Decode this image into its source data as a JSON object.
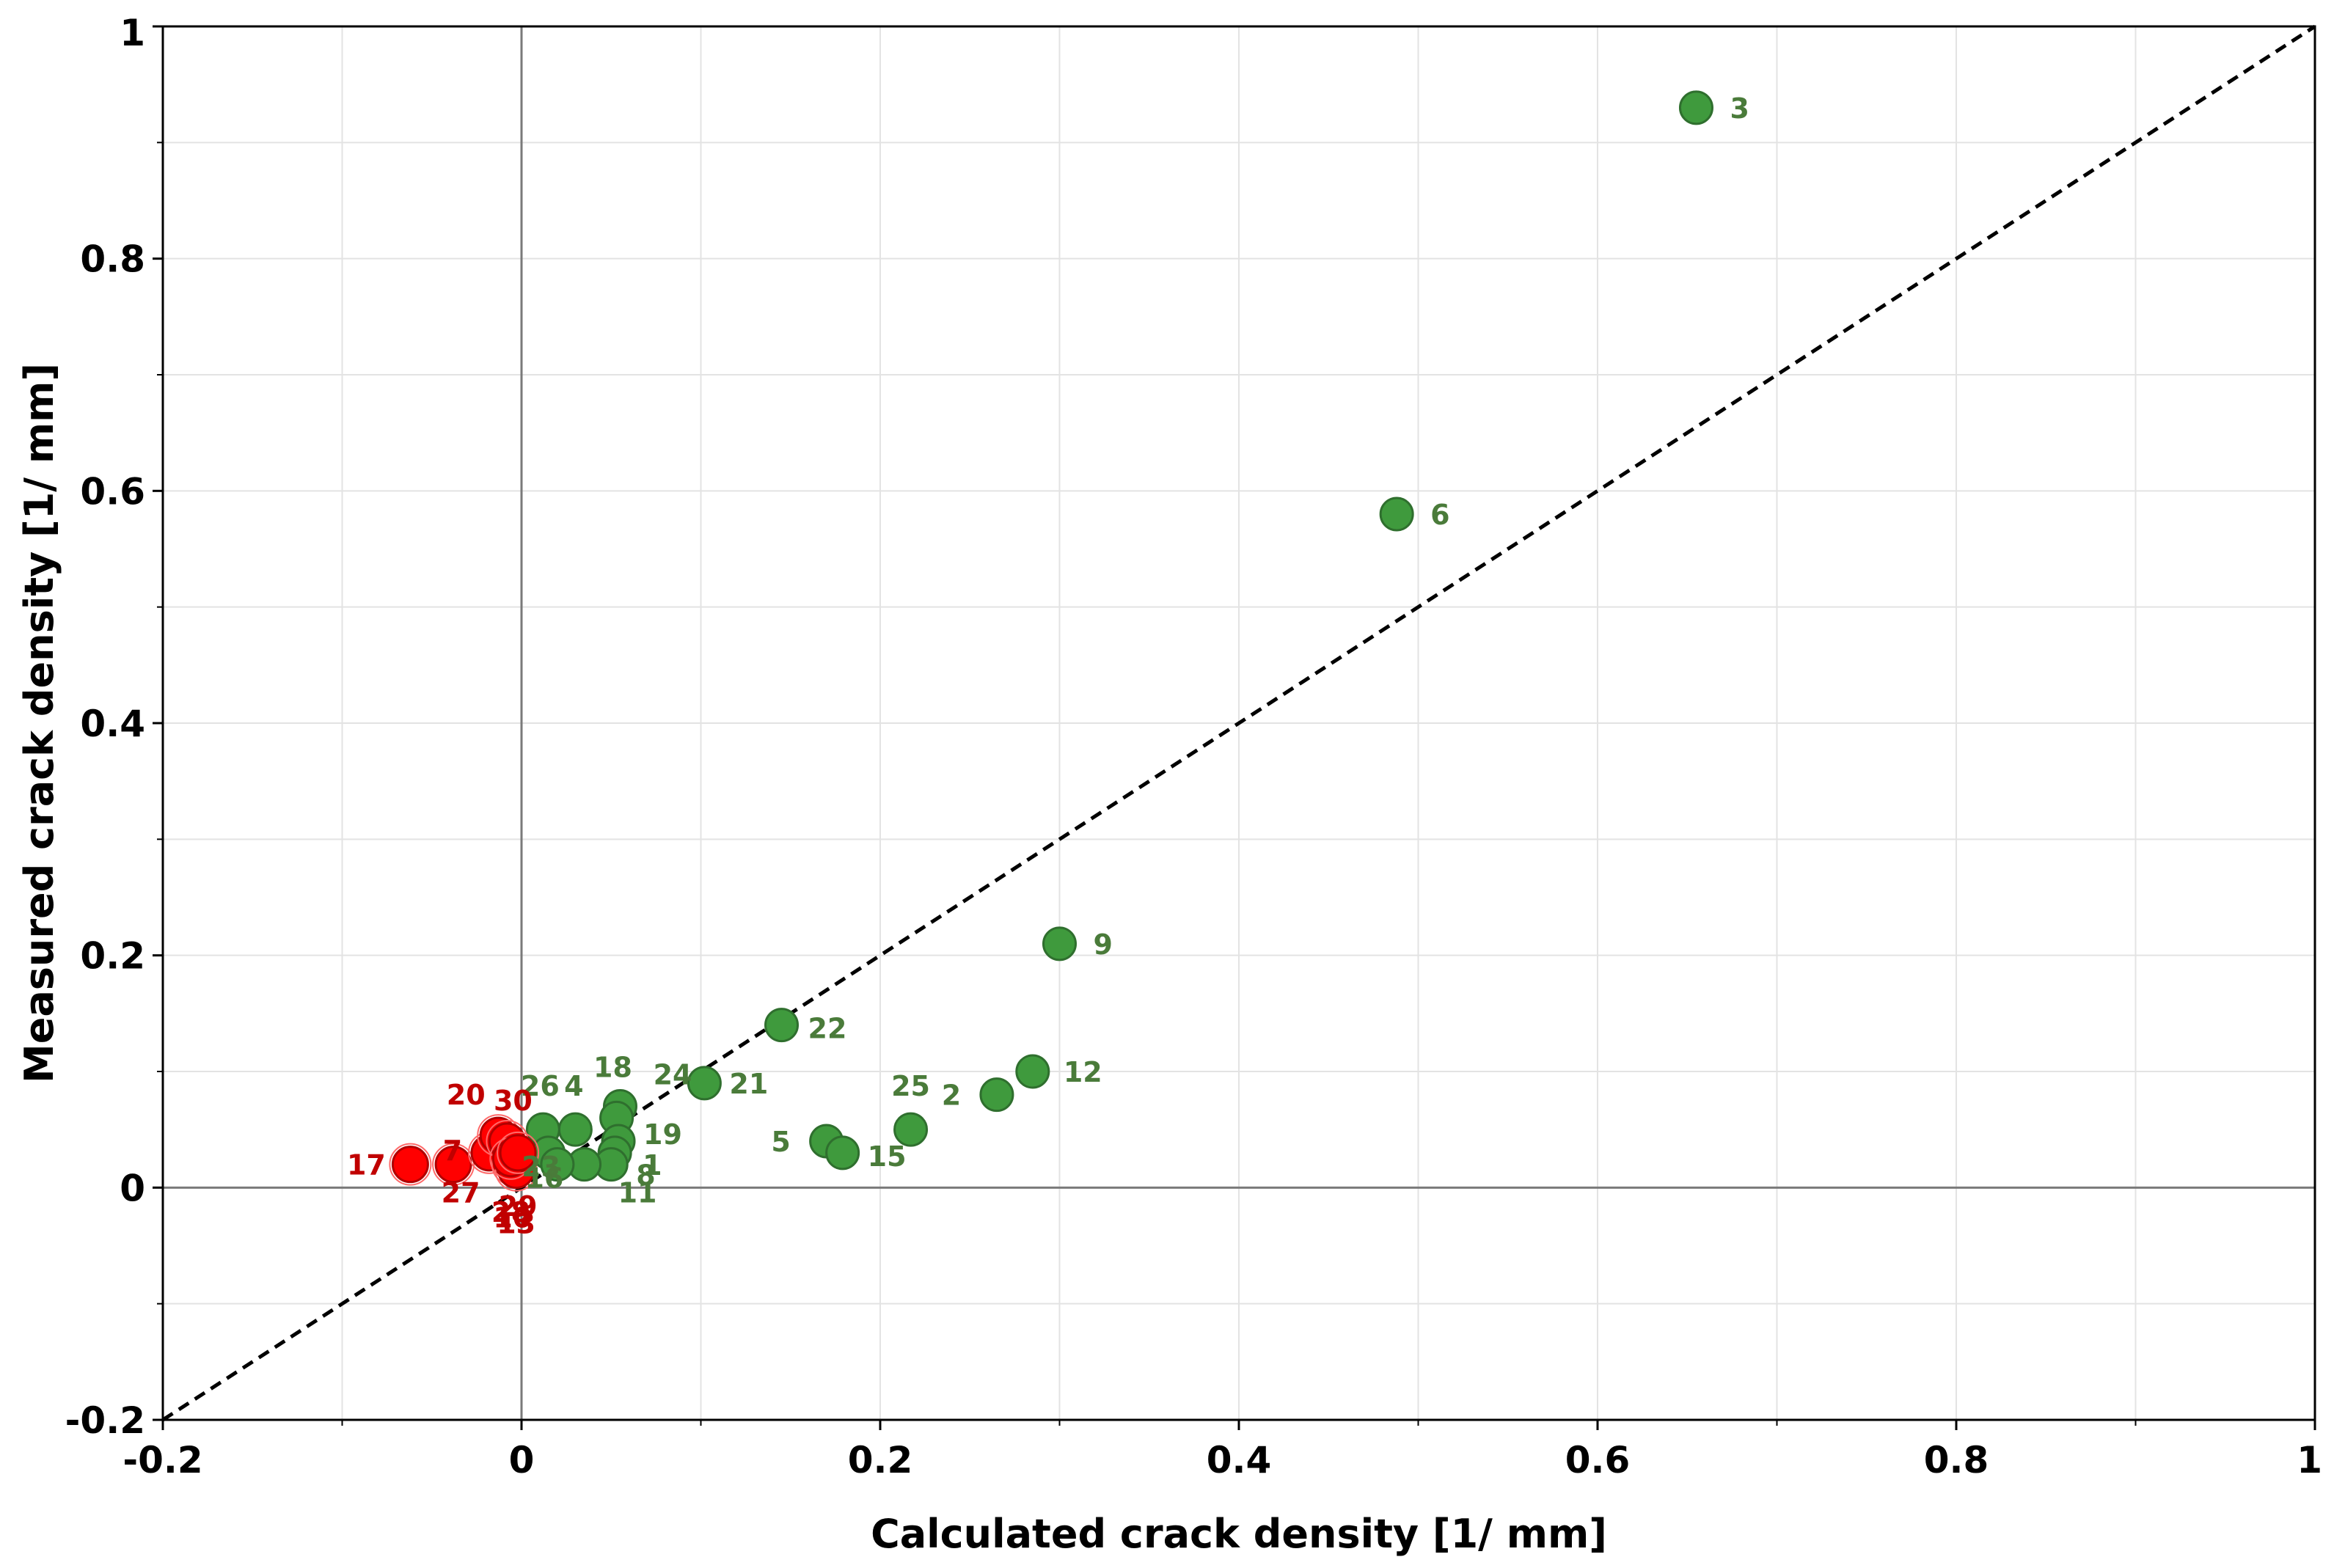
{
  "chart_data": {
    "type": "scatter",
    "title": "",
    "xlabel": "Calculated crack density [1/ mm]",
    "ylabel": "Measured crack density [1/ mm]",
    "xlim": [
      -0.2,
      1
    ],
    "ylim": [
      -0.2,
      1
    ],
    "xticks": [
      -0.2,
      0,
      0.2,
      0.4,
      0.6,
      0.8,
      1
    ],
    "yticks": [
      -0.2,
      0,
      0.2,
      0.4,
      0.6,
      0.8,
      1
    ],
    "xtick_labels": [
      "-0.2",
      "0",
      "0.2",
      "0.4",
      "0.6",
      "0.8",
      "1"
    ],
    "ytick_labels": [
      "-0.2",
      "0",
      "0.2",
      "0.4",
      "0.6",
      "0.8",
      "1"
    ],
    "grid": true,
    "reference_line": {
      "name": "y = x",
      "style": "dashed",
      "color": "#000000"
    },
    "colors": {
      "green": "#3f9a3d",
      "green_stroke": "#2f6f2e",
      "green_text": "#4a7b3a",
      "red": "#ff0000",
      "red_stroke": "#b00000",
      "red_text": "#c00000"
    },
    "series": [
      {
        "name": "green",
        "points": [
          {
            "label": "3",
            "x": 0.655,
            "y": 0.93
          },
          {
            "label": "6",
            "x": 0.488,
            "y": 0.58
          },
          {
            "label": "9",
            "x": 0.3,
            "y": 0.21
          },
          {
            "label": "22",
            "x": 0.145,
            "y": 0.14
          },
          {
            "label": "12",
            "x": 0.285,
            "y": 0.1
          },
          {
            "label": "2",
            "x": 0.265,
            "y": 0.08
          },
          {
            "label": "25",
            "x": 0.217,
            "y": 0.05
          },
          {
            "label": "21",
            "x": 0.102,
            "y": 0.09
          },
          {
            "label": "5",
            "x": 0.17,
            "y": 0.04
          },
          {
            "label": "15",
            "x": 0.179,
            "y": 0.03
          },
          {
            "label": "18",
            "x": 0.055,
            "y": 0.07
          },
          {
            "label": "24",
            "x": 0.053,
            "y": 0.06
          },
          {
            "label": "19",
            "x": 0.054,
            "y": 0.04
          },
          {
            "label": "1",
            "x": 0.052,
            "y": 0.03
          },
          {
            "label": "8",
            "x": 0.05,
            "y": 0.02
          },
          {
            "label": "11",
            "x": 0.035,
            "y": 0.02
          },
          {
            "label": "4",
            "x": 0.03,
            "y": 0.05
          },
          {
            "label": "26",
            "x": 0.012,
            "y": 0.05
          },
          {
            "label": "23",
            "x": 0.015,
            "y": 0.03
          },
          {
            "label": "16",
            "x": 0.02,
            "y": 0.02
          }
        ]
      },
      {
        "name": "red",
        "points": [
          {
            "label": "17",
            "x": -0.062,
            "y": 0.02
          },
          {
            "label": "27",
            "x": -0.038,
            "y": 0.02
          },
          {
            "label": "7",
            "x": -0.018,
            "y": 0.03
          },
          {
            "label": "20",
            "x": -0.013,
            "y": 0.045
          },
          {
            "label": "30",
            "x": -0.008,
            "y": 0.04
          },
          {
            "label": "10",
            "x": -0.005,
            "y": 0.02
          },
          {
            "label": "13",
            "x": -0.003,
            "y": 0.015
          },
          {
            "label": "28",
            "x": -0.006,
            "y": 0.025
          },
          {
            "label": "29",
            "x": -0.002,
            "y": 0.03
          }
        ]
      }
    ]
  }
}
